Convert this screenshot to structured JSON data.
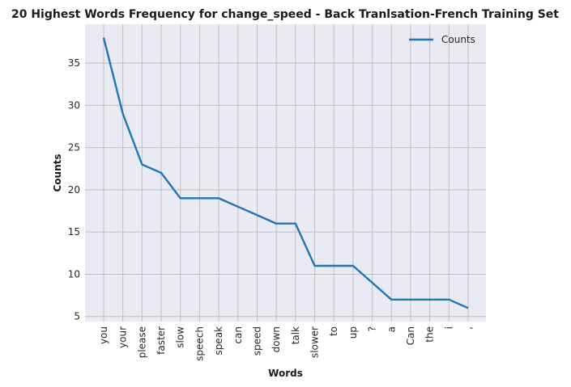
{
  "chart_data": {
    "type": "line",
    "title": "20 Highest Words Frequency for change_speed - Back Tranlsation-French Training Set",
    "xlabel": "Words",
    "ylabel": "Counts",
    "categories": [
      "you",
      "your",
      "please",
      "faster",
      "slow",
      "speech",
      "speak",
      "can",
      "speed",
      "down",
      "talk",
      "slower",
      "to",
      "up",
      "?",
      "a",
      "Can",
      "the",
      "i",
      ","
    ],
    "series": [
      {
        "name": "Counts",
        "values": [
          38,
          29,
          23,
          22,
          19,
          19,
          19,
          18,
          17,
          16,
          16,
          11,
          11,
          11,
          9,
          7,
          7,
          7,
          7,
          6
        ]
      }
    ],
    "yticks": [
      5,
      10,
      15,
      20,
      25,
      30,
      35
    ],
    "ylim": [
      4.4,
      39.6
    ],
    "grid": true,
    "legend": "top-right",
    "colors": {
      "line": "#1f77b4",
      "plot_bg": "#eaeaf2",
      "grid": "#c0c0c0"
    }
  }
}
